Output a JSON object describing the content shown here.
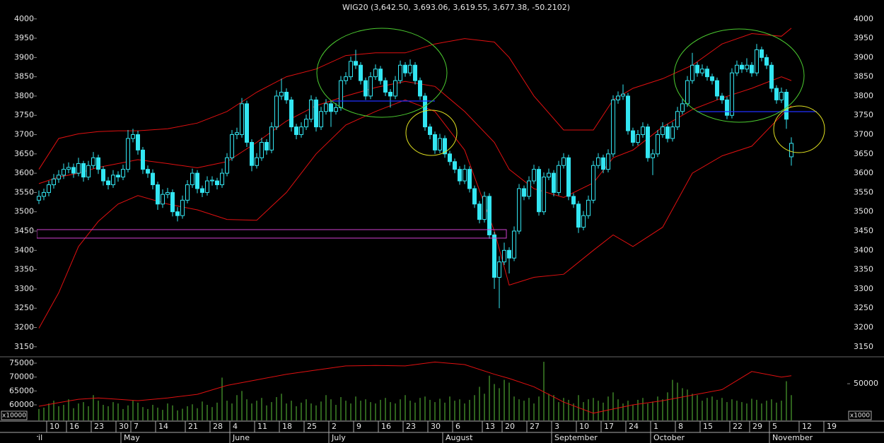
{
  "chart_data": {
    "type": "candlestick",
    "title": "WIG20 (3,642.50, 3,693.06, 3,619.55, 3,677.38, -50.2102)",
    "color": "#33e6f2",
    "xlim": [
      -0.43,
      163.29
    ],
    "ylim": [
      3124,
      4049
    ],
    "yticks": [
      3150,
      3200,
      3250,
      3300,
      3350,
      3400,
      3450,
      3500,
      3550,
      3600,
      3650,
      3700,
      3750,
      3800,
      3850,
      3900,
      3950,
      4000
    ],
    "xticks": [
      {
        "value": 2,
        "label": "10"
      },
      {
        "value": 6,
        "label": "16"
      },
      {
        "value": 11,
        "label": "23"
      },
      {
        "value": 16,
        "label": "30"
      },
      {
        "value": 19,
        "label": "7"
      },
      {
        "value": 24,
        "label": "14"
      },
      {
        "value": 30,
        "label": "21"
      },
      {
        "value": 35,
        "label": "28"
      },
      {
        "value": 39,
        "label": "4"
      },
      {
        "value": 44,
        "label": "11"
      },
      {
        "value": 49,
        "label": "18"
      },
      {
        "value": 54,
        "label": "25"
      },
      {
        "value": 59,
        "label": "2"
      },
      {
        "value": 64,
        "label": "9"
      },
      {
        "value": 69,
        "label": "16"
      },
      {
        "value": 74,
        "label": "23"
      },
      {
        "value": 79,
        "label": "30"
      },
      {
        "value": 84,
        "label": "6"
      },
      {
        "value": 90,
        "label": "13"
      },
      {
        "value": 94,
        "label": "20"
      },
      {
        "value": 99,
        "label": "27"
      },
      {
        "value": 104,
        "label": "3"
      },
      {
        "value": 109,
        "label": "10"
      },
      {
        "value": 114,
        "label": "17"
      },
      {
        "value": 119,
        "label": "24"
      },
      {
        "value": 124,
        "label": "1"
      },
      {
        "value": 129,
        "label": "8"
      },
      {
        "value": 134,
        "label": "15"
      },
      {
        "value": 140,
        "label": "22"
      },
      {
        "value": 144,
        "label": "29"
      },
      {
        "value": 148,
        "label": "5"
      },
      {
        "value": 154,
        "label": "12"
      },
      {
        "value": 159,
        "label": "19"
      }
    ],
    "months": [
      {
        "value": -3,
        "label": "April"
      },
      {
        "value": 17,
        "label": "May"
      },
      {
        "value": 39,
        "label": "June"
      },
      {
        "value": 59,
        "label": "July"
      },
      {
        "value": 82,
        "label": "August"
      },
      {
        "value": 104,
        "label": "September"
      },
      {
        "value": 124,
        "label": "October"
      },
      {
        "value": 148,
        "label": "November"
      }
    ],
    "ohlc": [
      [
        3530,
        3555,
        3520,
        3540
      ],
      [
        3540,
        3560,
        3530,
        3550
      ],
      [
        3550,
        3580,
        3540,
        3570
      ],
      [
        3570,
        3598,
        3560,
        3585
      ],
      [
        3585,
        3608,
        3575,
        3595
      ],
      [
        3595,
        3625,
        3585,
        3610
      ],
      [
        3610,
        3628,
        3600,
        3615
      ],
      [
        3615,
        3625,
        3588,
        3600
      ],
      [
        3600,
        3640,
        3592,
        3625
      ],
      [
        3625,
        3632,
        3578,
        3590
      ],
      [
        3590,
        3632,
        3582,
        3620
      ],
      [
        3620,
        3655,
        3612,
        3640
      ],
      [
        3640,
        3648,
        3598,
        3610
      ],
      [
        3610,
        3618,
        3568,
        3580
      ],
      [
        3580,
        3590,
        3558,
        3570
      ],
      [
        3570,
        3608,
        3562,
        3595
      ],
      [
        3595,
        3605,
        3578,
        3590
      ],
      [
        3590,
        3622,
        3582,
        3610
      ],
      [
        3610,
        3712,
        3602,
        3690
      ],
      [
        3690,
        3715,
        3680,
        3700
      ],
      [
        3700,
        3710,
        3648,
        3660
      ],
      [
        3660,
        3668,
        3598,
        3610
      ],
      [
        3610,
        3620,
        3588,
        3600
      ],
      [
        3600,
        3610,
        3558,
        3570
      ],
      [
        3570,
        3578,
        3505,
        3520
      ],
      [
        3520,
        3558,
        3510,
        3545
      ],
      [
        3545,
        3562,
        3535,
        3550
      ],
      [
        3550,
        3558,
        3488,
        3500
      ],
      [
        3500,
        3512,
        3475,
        3490
      ],
      [
        3490,
        3542,
        3482,
        3530
      ],
      [
        3530,
        3582,
        3522,
        3570
      ],
      [
        3570,
        3612,
        3562,
        3600
      ],
      [
        3600,
        3608,
        3548,
        3560
      ],
      [
        3560,
        3568,
        3538,
        3550
      ],
      [
        3550,
        3592,
        3542,
        3580
      ],
      [
        3580,
        3592,
        3568,
        3582
      ],
      [
        3580,
        3588,
        3558,
        3570
      ],
      [
        3570,
        3612,
        3562,
        3600
      ],
      [
        3600,
        3652,
        3592,
        3640
      ],
      [
        3640,
        3712,
        3632,
        3700
      ],
      [
        3700,
        3718,
        3688,
        3705
      ],
      [
        3700,
        3795,
        3692,
        3780
      ],
      [
        3780,
        3788,
        3668,
        3680
      ],
      [
        3680,
        3688,
        3605,
        3620
      ],
      [
        3620,
        3652,
        3612,
        3640
      ],
      [
        3640,
        3692,
        3632,
        3680
      ],
      [
        3680,
        3688,
        3648,
        3660
      ],
      [
        3660,
        3732,
        3652,
        3720
      ],
      [
        3720,
        3815,
        3712,
        3800
      ],
      [
        3800,
        3845,
        3790,
        3810
      ],
      [
        3810,
        3820,
        3780,
        3790
      ],
      [
        3790,
        3798,
        3708,
        3720
      ],
      [
        3720,
        3728,
        3688,
        3700
      ],
      [
        3700,
        3732,
        3692,
        3720
      ],
      [
        3720,
        3752,
        3712,
        3740
      ],
      [
        3740,
        3802,
        3732,
        3790
      ],
      [
        3790,
        3798,
        3708,
        3720
      ],
      [
        3720,
        3772,
        3712,
        3760
      ],
      [
        3760,
        3792,
        3752,
        3780
      ],
      [
        3780,
        3788,
        3720,
        3760
      ],
      [
        3760,
        3782,
        3752,
        3770
      ],
      [
        3770,
        3852,
        3762,
        3840
      ],
      [
        3840,
        3862,
        3830,
        3850
      ],
      [
        3850,
        3902,
        3842,
        3890
      ],
      [
        3890,
        3920,
        3870,
        3880
      ],
      [
        3880,
        3888,
        3830,
        3840
      ],
      [
        3840,
        3848,
        3790,
        3800
      ],
      [
        3800,
        3862,
        3792,
        3850
      ],
      [
        3850,
        3882,
        3842,
        3870
      ],
      [
        3870,
        3878,
        3830,
        3840
      ],
      [
        3840,
        3848,
        3800,
        3810
      ],
      [
        3810,
        3818,
        3770,
        3800
      ],
      [
        3800,
        3852,
        3792,
        3840
      ],
      [
        3840,
        3892,
        3832,
        3880
      ],
      [
        3880,
        3888,
        3850,
        3860
      ],
      [
        3860,
        3895,
        3852,
        3880
      ],
      [
        3880,
        3888,
        3830,
        3840
      ],
      [
        3840,
        3848,
        3790,
        3800
      ],
      [
        3800,
        3808,
        3710,
        3720
      ],
      [
        3720,
        3728,
        3688,
        3700
      ],
      [
        3700,
        3708,
        3650,
        3660
      ],
      [
        3660,
        3702,
        3652,
        3690
      ],
      [
        3690,
        3698,
        3640,
        3650
      ],
      [
        3650,
        3658,
        3620,
        3630
      ],
      [
        3630,
        3638,
        3600,
        3610
      ],
      [
        3610,
        3618,
        3570,
        3580
      ],
      [
        3580,
        3622,
        3572,
        3610
      ],
      [
        3610,
        3618,
        3550,
        3560
      ],
      [
        3560,
        3568,
        3510,
        3520
      ],
      [
        3520,
        3528,
        3470,
        3480
      ],
      [
        3480,
        3552,
        3472,
        3540
      ],
      [
        3540,
        3548,
        3430,
        3440
      ],
      [
        3440,
        3448,
        3300,
        3330
      ],
      [
        3330,
        3385,
        3250,
        3370
      ],
      [
        3370,
        3420,
        3362,
        3400
      ],
      [
        3400,
        3408,
        3340,
        3380
      ],
      [
        3380,
        3462,
        3372,
        3450
      ],
      [
        3450,
        3572,
        3442,
        3560
      ],
      [
        3560,
        3568,
        3530,
        3540
      ],
      [
        3540,
        3592,
        3532,
        3580
      ],
      [
        3580,
        3622,
        3572,
        3610
      ],
      [
        3610,
        3618,
        3490,
        3500
      ],
      [
        3500,
        3602,
        3492,
        3590
      ],
      [
        3590,
        3612,
        3582,
        3600
      ],
      [
        3600,
        3608,
        3540,
        3550
      ],
      [
        3550,
        3632,
        3542,
        3620
      ],
      [
        3620,
        3652,
        3612,
        3640
      ],
      [
        3640,
        3648,
        3530,
        3540
      ],
      [
        3540,
        3548,
        3510,
        3520
      ],
      [
        3520,
        3528,
        3445,
        3460
      ],
      [
        3460,
        3502,
        3452,
        3490
      ],
      [
        3490,
        3542,
        3482,
        3530
      ],
      [
        3530,
        3632,
        3522,
        3620
      ],
      [
        3620,
        3652,
        3612,
        3640
      ],
      [
        3640,
        3648,
        3600,
        3610
      ],
      [
        3610,
        3662,
        3602,
        3650
      ],
      [
        3650,
        3802,
        3642,
        3790
      ],
      [
        3790,
        3812,
        3780,
        3800
      ],
      [
        3800,
        3830,
        3790,
        3805
      ],
      [
        3800,
        3808,
        3700,
        3710
      ],
      [
        3710,
        3718,
        3670,
        3680
      ],
      [
        3680,
        3712,
        3672,
        3700
      ],
      [
        3700,
        3732,
        3692,
        3720
      ],
      [
        3720,
        3728,
        3630,
        3640
      ],
      [
        3640,
        3662,
        3595,
        3650
      ],
      [
        3650,
        3712,
        3642,
        3700
      ],
      [
        3700,
        3732,
        3692,
        3720
      ],
      [
        3720,
        3728,
        3680,
        3690
      ],
      [
        3690,
        3732,
        3682,
        3720
      ],
      [
        3720,
        3772,
        3712,
        3760
      ],
      [
        3760,
        3792,
        3752,
        3780
      ],
      [
        3780,
        3852,
        3772,
        3840
      ],
      [
        3840,
        3912,
        3832,
        3880
      ],
      [
        3880,
        3888,
        3850,
        3860
      ],
      [
        3860,
        3882,
        3852,
        3870
      ],
      [
        3870,
        3878,
        3840,
        3850
      ],
      [
        3850,
        3858,
        3830,
        3840
      ],
      [
        3840,
        3848,
        3790,
        3800
      ],
      [
        3800,
        3808,
        3780,
        3790
      ],
      [
        3790,
        3798,
        3740,
        3750
      ],
      [
        3750,
        3872,
        3742,
        3860
      ],
      [
        3860,
        3892,
        3852,
        3880
      ],
      [
        3880,
        3888,
        3860,
        3870
      ],
      [
        3870,
        3898,
        3862,
        3880
      ],
      [
        3880,
        3888,
        3850,
        3860
      ],
      [
        3860,
        3935,
        3852,
        3920
      ],
      [
        3920,
        3928,
        3890,
        3900
      ],
      [
        3900,
        3908,
        3870,
        3880
      ],
      [
        3880,
        3888,
        3810,
        3820
      ],
      [
        3820,
        3828,
        3780,
        3790
      ],
      [
        3790,
        3822,
        3782,
        3810
      ],
      [
        3810,
        3818,
        3715,
        3740
      ],
      [
        3642.5,
        3693.06,
        3619.55,
        3677.38
      ]
    ],
    "bollinger": {
      "color": "#e01010",
      "x": [
        0,
        4,
        8,
        12,
        16,
        20,
        26,
        32,
        38,
        44,
        50,
        56,
        62,
        68,
        74,
        80,
        86,
        92,
        95,
        100,
        106,
        112,
        116,
        120,
        126,
        132,
        138,
        144,
        150,
        152
      ],
      "upper": [
        3610,
        3690,
        3702,
        3708,
        3710,
        3710,
        3715,
        3730,
        3760,
        3810,
        3850,
        3870,
        3905,
        3912,
        3912,
        3935,
        3949,
        3940,
        3900,
        3800,
        3712,
        3712,
        3790,
        3820,
        3845,
        3880,
        3935,
        3962,
        3955,
        3976
      ],
      "middle": [
        3573,
        3590,
        3600,
        3615,
        3625,
        3635,
        3625,
        3614,
        3630,
        3680,
        3735,
        3775,
        3800,
        3822,
        3838,
        3825,
        3760,
        3680,
        3610,
        3560,
        3537,
        3575,
        3640,
        3660,
        3720,
        3765,
        3795,
        3820,
        3850,
        3840
      ],
      "lower": [
        3198,
        3290,
        3410,
        3475,
        3520,
        3542,
        3520,
        3505,
        3480,
        3478,
        3550,
        3650,
        3725,
        3760,
        3790,
        3760,
        3660,
        3450,
        3310,
        3330,
        3338,
        3400,
        3440,
        3410,
        3460,
        3600,
        3645,
        3670,
        3750,
        3775
      ]
    },
    "volume": {
      "color": "#5cc43a",
      "ylim": [
        54410,
        77290
      ],
      "yticks": [
        60000,
        65000,
        70000,
        75000
      ],
      "y2lim": [
        41000,
        56600
      ],
      "y2ticks": [
        50000
      ],
      "unit_left": "x10000",
      "unit_right": "x1000",
      "values": [
        58500,
        59000,
        60500,
        61500,
        59500,
        60000,
        62000,
        58800,
        60500,
        61000,
        59500,
        63500,
        61500,
        60000,
        59500,
        61000,
        60500,
        58500,
        59800,
        61500,
        60800,
        59200,
        58500,
        60000,
        59000,
        58200,
        60500,
        59800,
        58000,
        58600,
        59500,
        60200,
        58800,
        61200,
        60000,
        59200,
        60800,
        69800,
        61500,
        60500,
        63500,
        65000,
        62000,
        60500,
        61500,
        62500,
        59800,
        61000,
        62800,
        64000,
        60500,
        61500,
        59500,
        60800,
        62000,
        60500,
        59800,
        61200,
        63500,
        62000,
        60000,
        62800,
        61500,
        60500,
        63000,
        61500,
        62000,
        61000,
        60500,
        61800,
        62500,
        61000,
        60500,
        62000,
        63500,
        61500,
        60800,
        62500,
        63000,
        61800,
        61000,
        62200,
        60800,
        63000,
        61500,
        62000,
        60500,
        61800,
        63500,
        66500,
        64000,
        70500,
        67500,
        66000,
        69000,
        68000,
        63000,
        62000,
        61500,
        62500,
        60500,
        63000,
        75500,
        64000,
        63500,
        61000,
        62500,
        61800,
        60500,
        63500,
        61000,
        62000,
        62500,
        61500,
        60800,
        63000,
        64500,
        62000,
        60500,
        61500,
        60000,
        61800,
        62500,
        60500,
        61200,
        63000,
        62000,
        64500,
        69000,
        68000,
        66000,
        65500,
        64000,
        63500,
        61500,
        62500,
        63000,
        61800,
        62500,
        61000,
        62000,
        61500,
        61000,
        60500,
        62200,
        61800,
        60500,
        61500,
        62000,
        60800,
        61500,
        68500,
        63500
      ],
      "ma": {
        "color": "#e01010",
        "x": [
          0,
          4,
          8,
          12,
          16,
          20,
          26,
          32,
          38,
          44,
          50,
          56,
          62,
          68,
          74,
          80,
          86,
          92,
          95,
          100,
          106,
          112,
          116,
          120,
          126,
          132,
          138,
          144,
          150,
          152
        ],
        "values": [
          59500,
          60800,
          62000,
          62500,
          62000,
          61500,
          62500,
          63800,
          67000,
          69000,
          71000,
          72500,
          74000,
          74200,
          74000,
          75400,
          74500,
          71000,
          69500,
          66500,
          61000,
          57000,
          58500,
          60000,
          61500,
          63500,
          65500,
          72000,
          70000,
          70500
        ]
      }
    }
  }
}
